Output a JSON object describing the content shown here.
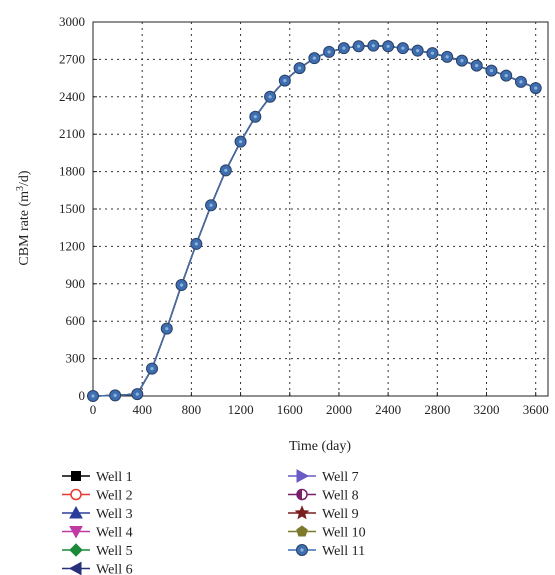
{
  "chart_data": {
    "type": "line",
    "xlabel": "Time (day)",
    "ylabel_main": "CBM rate (m",
    "ylabel_sup": "3",
    "ylabel_tail": "/d)",
    "xlim": [
      0,
      3700
    ],
    "ylim": [
      0,
      3000
    ],
    "xticks": [
      0,
      400,
      800,
      1200,
      1600,
      2000,
      2400,
      2800,
      3200,
      3600
    ],
    "yticks": [
      0,
      300,
      600,
      900,
      1200,
      1500,
      1800,
      2100,
      2400,
      2700,
      3000
    ],
    "grid": true,
    "legend_position": "bottom",
    "x": [
      0,
      180,
      360,
      480,
      600,
      720,
      840,
      960,
      1080,
      1200,
      1320,
      1440,
      1560,
      1680,
      1800,
      1920,
      2040,
      2160,
      2280,
      2400,
      2520,
      2640,
      2760,
      2880,
      3000,
      3120,
      3240,
      3360,
      3480,
      3600
    ],
    "series": [
      {
        "name": "Well 1",
        "color": "#000000",
        "marker": "square"
      },
      {
        "name": "Well 2",
        "color": "#e8382f",
        "marker": "circle-open"
      },
      {
        "name": "Well 3",
        "color": "#2b3d9b",
        "marker": "triangle-up"
      },
      {
        "name": "Well 4",
        "color": "#c03aa3",
        "marker": "triangle-down"
      },
      {
        "name": "Well 5",
        "color": "#1a8a3a",
        "marker": "diamond"
      },
      {
        "name": "Well 6",
        "color": "#27317a",
        "marker": "triangle-left"
      },
      {
        "name": "Well 7",
        "color": "#6a5ac8",
        "marker": "triangle-right"
      },
      {
        "name": "Well 8",
        "color": "#7a1f6a",
        "marker": "circle-half"
      },
      {
        "name": "Well 9",
        "color": "#7a1f1f",
        "marker": "star"
      },
      {
        "name": "Well 10",
        "color": "#7c7a2a",
        "marker": "pentagon"
      },
      {
        "name": "Well 11",
        "color": "#3d6fb0",
        "marker": "circle-hex"
      }
    ],
    "values": [
      0,
      5,
      15,
      220,
      540,
      890,
      1220,
      1530,
      1810,
      2040,
      2240,
      2400,
      2530,
      2630,
      2710,
      2760,
      2790,
      2805,
      2810,
      2805,
      2790,
      2770,
      2750,
      2720,
      2690,
      2650,
      2610,
      2570,
      2520,
      2470
    ]
  }
}
